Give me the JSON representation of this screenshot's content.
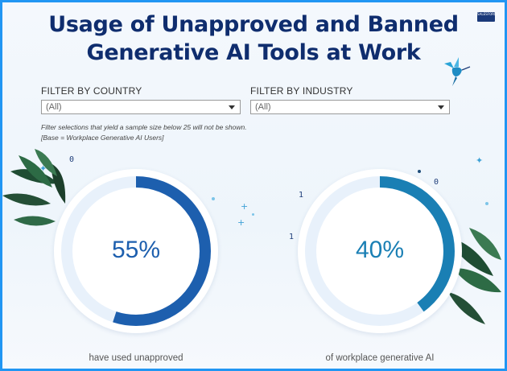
{
  "header": {
    "title_line1": "Usage of Unapproved and Banned",
    "title_line2": "Generative AI Tools at Work",
    "logo_text": "SALESFORCE"
  },
  "filters": {
    "country": {
      "label": "FILTER BY COUNTRY",
      "value": "(All)"
    },
    "industry": {
      "label": "FILTER BY INDUSTRY",
      "value": "(All)"
    }
  },
  "notes": {
    "sample": "Filter selections that yield a sample size below 25 will not be shown.",
    "base": "[Base = Workplace Generative AI Users]"
  },
  "gauges": [
    {
      "value_text": "55%",
      "fraction": 0.55,
      "color": "#1d5fae",
      "caption": "have used unapproved"
    },
    {
      "value_text": "40%",
      "fraction": 0.4,
      "color": "#1a7fb4",
      "caption": "of workplace generative AI"
    }
  ],
  "decor": {
    "digit_0": "0",
    "digit_1": "1",
    "digit_0b": "0",
    "digit_1b": "1",
    "digit_1c": "1"
  },
  "colors": {
    "title": "#0f2d6e",
    "border": "#2196f3",
    "track": "#e8f1fb"
  }
}
